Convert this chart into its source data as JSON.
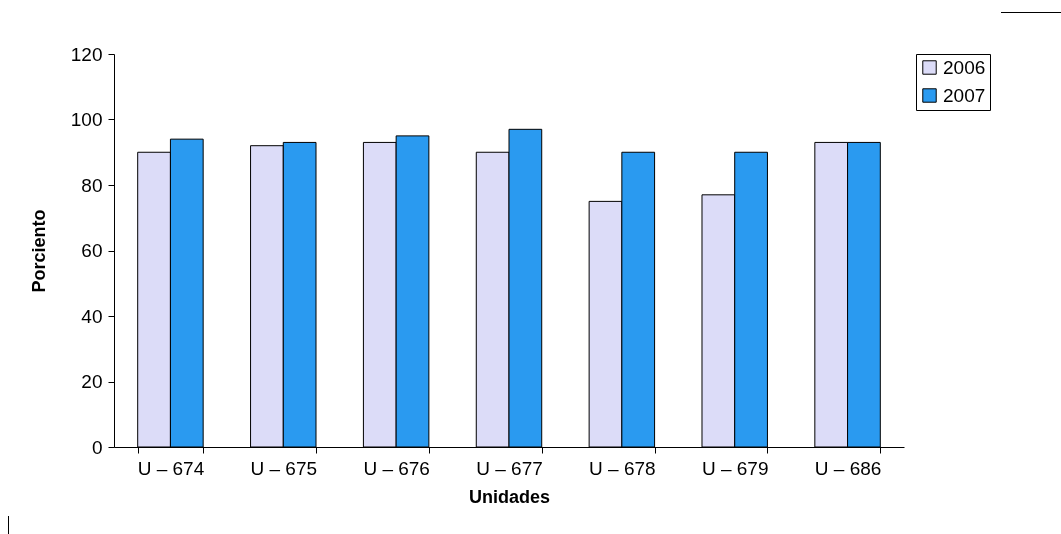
{
  "chart_data": {
    "type": "bar",
    "xlabel": "Unidades",
    "ylabel": "Porciento",
    "categories": [
      "U – 674",
      "U – 675",
      "U – 676",
      "U – 677",
      "U – 678",
      "U – 679",
      "U – 686"
    ],
    "series": [
      {
        "name": "2006",
        "color": "#dcdcf8",
        "values": [
          90,
          92,
          93,
          90,
          75,
          77,
          93
        ]
      },
      {
        "name": "2007",
        "color": "#2a9af0",
        "values": [
          94,
          93,
          95,
          97,
          90,
          90,
          93
        ]
      }
    ],
    "ylim": [
      0,
      120
    ],
    "yticks": [
      0,
      20,
      40,
      60,
      80,
      100,
      120
    ],
    "grid": false,
    "legend": "right"
  }
}
